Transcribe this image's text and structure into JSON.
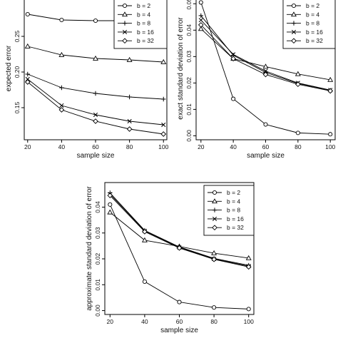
{
  "chart_data": [
    {
      "type": "line",
      "xlabel": "sample size",
      "ylabel": "expected error",
      "x": [
        20,
        40,
        60,
        80,
        100
      ],
      "xticks": [
        "20",
        "40",
        "60",
        "80",
        "100"
      ],
      "xlim": [
        18,
        102
      ],
      "ylim": [
        0.105,
        0.305
      ],
      "yticks": [
        0.15,
        0.2,
        0.25
      ],
      "ytick_labels": [
        "0.15",
        "0.20",
        "0.25"
      ],
      "legend": "top-right",
      "series": [
        {
          "name": "b = 2",
          "marker": "circle",
          "values": [
            0.281,
            0.273,
            0.272,
            0.272,
            0.271
          ]
        },
        {
          "name": "b = 4",
          "marker": "triangle",
          "values": [
            0.236,
            0.224,
            0.219,
            0.217,
            0.214
          ]
        },
        {
          "name": "b = 8",
          "marker": "plus",
          "values": [
            0.197,
            0.178,
            0.17,
            0.165,
            0.162
          ]
        },
        {
          "name": "b = 16",
          "marker": "cross",
          "values": [
            0.19,
            0.153,
            0.14,
            0.131,
            0.126
          ]
        },
        {
          "name": "b = 32",
          "marker": "diamond",
          "values": [
            0.186,
            0.147,
            0.131,
            0.12,
            0.113
          ]
        }
      ]
    },
    {
      "type": "line",
      "xlabel": "sample size",
      "ylabel": "exact standard deviation of error",
      "x": [
        20,
        40,
        60,
        80,
        100
      ],
      "xticks": [
        "20",
        "40",
        "60",
        "80",
        "100"
      ],
      "xlim": [
        17,
        103
      ],
      "ylim": [
        -0.0015,
        0.0525
      ],
      "yticks": [
        0.0,
        0.01,
        0.02,
        0.03,
        0.04,
        0.05
      ],
      "ytick_labels": [
        "0.00",
        "0.01",
        "0.02",
        "0.03",
        "0.04",
        "0.05"
      ],
      "legend": "top-right",
      "series": [
        {
          "name": "b = 2",
          "marker": "circle",
          "values": [
            0.0505,
            0.014,
            0.0043,
            0.0011,
            0.0006
          ]
        },
        {
          "name": "b = 4",
          "marker": "triangle",
          "values": [
            0.0405,
            0.0292,
            0.0262,
            0.0234,
            0.0212
          ]
        },
        {
          "name": "b = 8",
          "marker": "plus",
          "values": [
            0.0455,
            0.0305,
            0.024,
            0.0198,
            0.0172
          ]
        },
        {
          "name": "b = 16",
          "marker": "cross",
          "values": [
            0.0438,
            0.0308,
            0.0245,
            0.02,
            0.0173
          ]
        },
        {
          "name": "b = 32",
          "marker": "diamond",
          "values": [
            0.042,
            0.0292,
            0.0232,
            0.0195,
            0.017
          ]
        }
      ]
    },
    {
      "type": "line",
      "xlabel": "sample size",
      "ylabel": "approximate standard deviation of error",
      "x": [
        20,
        40,
        60,
        80,
        100
      ],
      "xticks": [
        "20",
        "40",
        "60",
        "80",
        "100"
      ],
      "xlim": [
        17,
        103
      ],
      "ylim": [
        -0.0015,
        0.0495
      ],
      "yticks": [
        0.0,
        0.01,
        0.02,
        0.03,
        0.04
      ],
      "ytick_labels": [
        "0.00",
        "0.01",
        "0.02",
        "0.03",
        "0.04"
      ],
      "legend": "top-right",
      "series": [
        {
          "name": "b = 2",
          "marker": "circle",
          "values": [
            0.041,
            0.0112,
            0.0033,
            0.0012,
            0.0006
          ]
        },
        {
          "name": "b = 4",
          "marker": "triangle",
          "values": [
            0.038,
            0.0272,
            0.0248,
            0.0222,
            0.0203
          ]
        },
        {
          "name": "b = 8",
          "marker": "plus",
          "values": [
            0.0455,
            0.031,
            0.0246,
            0.0202,
            0.0175
          ]
        },
        {
          "name": "b = 16",
          "marker": "cross",
          "values": [
            0.045,
            0.0308,
            0.0244,
            0.02,
            0.0172
          ]
        },
        {
          "name": "b = 32",
          "marker": "diamond",
          "values": [
            0.0445,
            0.0305,
            0.0242,
            0.0198,
            0.0169
          ]
        }
      ]
    }
  ]
}
